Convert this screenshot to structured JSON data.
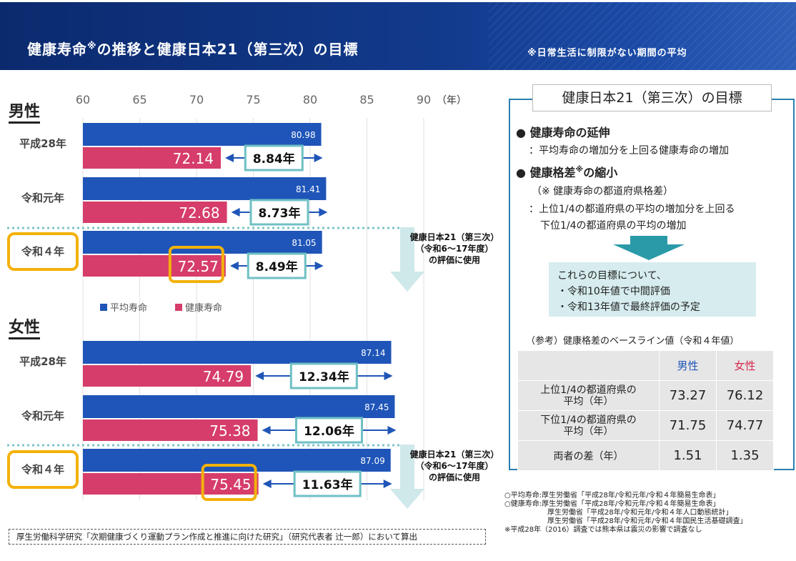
{
  "header": {
    "title": "健康寿命",
    "title_mark": "※",
    "title_rest": "の推移と健康日本21（第三次）の目標",
    "subtitle": "※日常生活に制限がない期間の平均"
  },
  "chart_data": {
    "type": "bar",
    "orientation": "horizontal",
    "axis_ticks": [
      "60",
      "65",
      "70",
      "75",
      "80",
      "85",
      "90"
    ],
    "axis_unit": "（年）",
    "xlim": [
      60,
      90
    ],
    "grid": true,
    "legend": {
      "position": "middle-left",
      "items": [
        "平均寿命",
        "健康寿命"
      ]
    },
    "series_colors": {
      "avg": "#1f55b8",
      "healthy": "#d63d6a"
    },
    "sections": [
      {
        "label": "男性",
        "groups": [
          {
            "label": "平成28年",
            "avg": 80.98,
            "healthy": 72.14,
            "gap": "8.84年",
            "highlight": false
          },
          {
            "label": "令和元年",
            "avg": 81.41,
            "healthy": 72.68,
            "gap": "8.73年",
            "highlight": false
          },
          {
            "label": "令和４年",
            "avg": 81.05,
            "healthy": 72.57,
            "gap": "8.49年",
            "highlight": true
          }
        ],
        "note": [
          "健康日本21（第三次）",
          "（令和6～17年度）",
          "の評価に使用"
        ]
      },
      {
        "label": "女性",
        "groups": [
          {
            "label": "平成28年",
            "avg": 87.14,
            "healthy": 74.79,
            "gap": "12.34年",
            "highlight": false
          },
          {
            "label": "令和元年",
            "avg": 87.45,
            "healthy": 75.38,
            "gap": "12.06年",
            "highlight": false
          },
          {
            "label": "令和４年",
            "avg": 87.09,
            "healthy": 75.45,
            "gap": "11.63年",
            "highlight": true
          }
        ],
        "note": [
          "健康日本21（第三次）",
          "（令和6～17年度）",
          "の評価に使用"
        ]
      }
    ]
  },
  "goals": {
    "title": "健康日本21（第三次）の目標",
    "item1_title": "健康寿命の延伸",
    "item1_desc": "：平均寿命の増加分を上回る健康寿命の増加",
    "item2_title": "健康格差",
    "item2_mark": "※",
    "item2_title_rest": "の縮小",
    "item2_note": "（※ 健康寿命の都道府県格差）",
    "item2_desc1": "：上位1/4の都道府県の平均の増加分を上回る",
    "item2_desc2": "下位1/4の都道府県の平均の増加",
    "eval_title": "これらの目標について、",
    "eval1": "・令和10年値で中間評価",
    "eval2": "・令和13年値で最終評価の予定",
    "baseline_caption": "（参考）健康格差のベースライン値（令和４年値）",
    "col_male": "男性",
    "col_female": "女性",
    "rows": [
      {
        "label1": "上位1/4の都道府県の",
        "label2": "平均（年）",
        "male": "73.27",
        "female": "76.12"
      },
      {
        "label1": "下位1/4の都道府県の",
        "label2": "平均（年）",
        "male": "71.75",
        "female": "74.77"
      },
      {
        "label1": "両者の差（年）",
        "label2": "",
        "male": "1.51",
        "female": "1.35"
      }
    ]
  },
  "sources": [
    "○平均寿命:厚生労働省「平成28年/令和元年/令和４年簡易生命表」",
    "○健康寿命:厚生労働省「平成28年/令和元年/令和４年簡易生命表」",
    "　　　　　　厚生労働省「平成28年/令和元年/令和４年人口動態統計」",
    "　　　　　　厚生労働省「平成28年/令和元年/令和４年国民生活基礎調査」",
    "※平成28年（2016）調査では熊本県は震災の影響で調査なし"
  ],
  "footnote": "厚生労働科学研究「次期健康づくり運動プラン作成と推進に向けた研究」（研究代表者 辻一郎）において算出"
}
